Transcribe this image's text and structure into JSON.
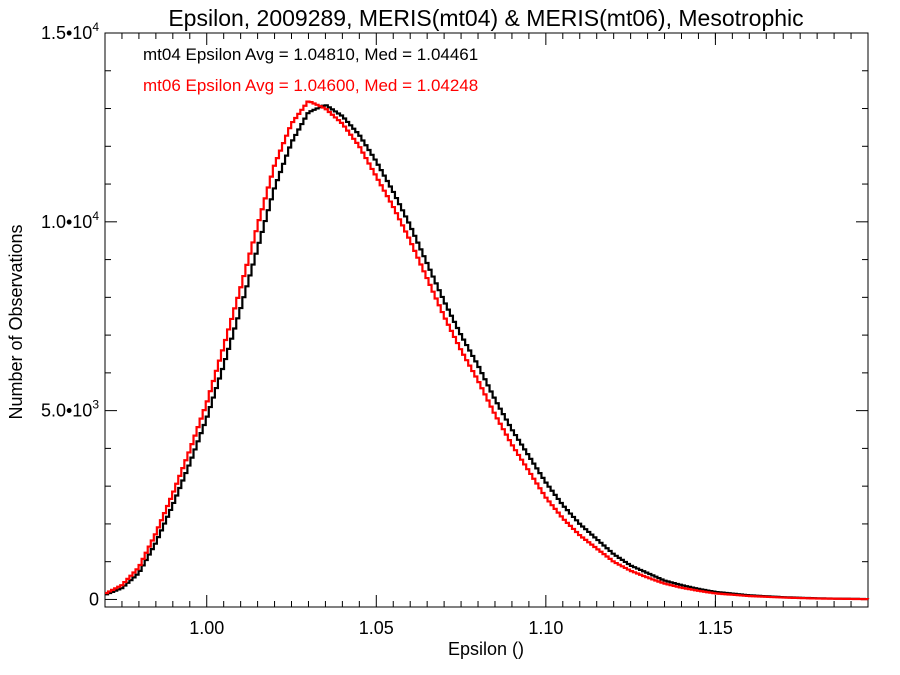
{
  "chart_data": {
    "type": "line",
    "title": "Epsilon, 2009289, MERIS(mt04) & MERIS(mt06), Mesotrophic",
    "xlabel": "Epsilon ()",
    "ylabel": "Number of Observations",
    "xlim": [
      0.97,
      1.195
    ],
    "ylim": [
      -200,
      15000
    ],
    "x_ticks": [
      1.0,
      1.05,
      1.1,
      1.15
    ],
    "x_tick_labels": [
      "1.00",
      "1.05",
      "1.10",
      "1.15"
    ],
    "y_ticks": [
      {
        "value": 0,
        "mantissa": "0",
        "exponent": ""
      },
      {
        "value": 5000,
        "mantissa": "5.0•10",
        "exponent": "3"
      },
      {
        "value": 10000,
        "mantissa": "1.0•10",
        "exponent": "4"
      },
      {
        "value": 15000,
        "mantissa": "1.5•10",
        "exponent": "4"
      }
    ],
    "grid": false,
    "legend_position": "top-left",
    "annotations": [
      "mt04 Epsilon Avg = 1.04810, Med = 1.04461",
      "mt06 Epsilon Avg = 1.04600, Med = 1.04248"
    ],
    "series": [
      {
        "name": "mt04",
        "color": "#000000",
        "x": [
          0.97,
          0.975,
          0.98,
          0.985,
          0.99,
          0.995,
          1.0,
          1.005,
          1.01,
          1.015,
          1.02,
          1.025,
          1.03,
          1.035,
          1.04,
          1.045,
          1.05,
          1.055,
          1.06,
          1.065,
          1.07,
          1.075,
          1.08,
          1.085,
          1.09,
          1.095,
          1.1,
          1.105,
          1.11,
          1.115,
          1.12,
          1.125,
          1.13,
          1.135,
          1.14,
          1.145,
          1.15,
          1.16,
          1.17,
          1.18,
          1.195
        ],
        "y": [
          120,
          300,
          700,
          1500,
          2500,
          3600,
          4800,
          6200,
          7700,
          9300,
          10900,
          12100,
          12900,
          13100,
          12800,
          12300,
          11600,
          10800,
          9900,
          8900,
          7900,
          7000,
          6200,
          5300,
          4500,
          3800,
          3100,
          2500,
          2000,
          1600,
          1200,
          900,
          700,
          500,
          380,
          280,
          200,
          110,
          60,
          30,
          10
        ]
      },
      {
        "name": "mt06",
        "color": "#ff0000",
        "x": [
          0.97,
          0.975,
          0.98,
          0.985,
          0.99,
          0.995,
          1.0,
          1.005,
          1.01,
          1.015,
          1.02,
          1.025,
          1.03,
          1.035,
          1.04,
          1.045,
          1.05,
          1.055,
          1.06,
          1.065,
          1.07,
          1.075,
          1.08,
          1.085,
          1.09,
          1.095,
          1.1,
          1.105,
          1.11,
          1.115,
          1.12,
          1.125,
          1.13,
          1.135,
          1.14,
          1.145,
          1.15,
          1.16,
          1.17,
          1.18,
          1.195
        ],
        "y": [
          150,
          380,
          850,
          1750,
          2800,
          3950,
          5200,
          6700,
          8250,
          9900,
          11500,
          12600,
          13200,
          13000,
          12600,
          12000,
          11200,
          10400,
          9500,
          8500,
          7500,
          6600,
          5800,
          4900,
          4100,
          3400,
          2700,
          2150,
          1700,
          1350,
          1000,
          760,
          580,
          420,
          310,
          230,
          160,
          90,
          50,
          25,
          8
        ]
      }
    ]
  }
}
